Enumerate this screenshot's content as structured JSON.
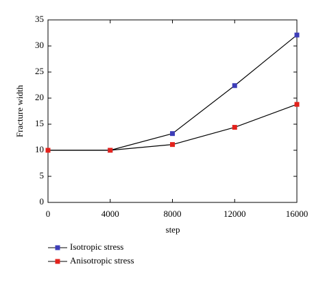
{
  "chart_data": {
    "type": "line",
    "x_label": "step",
    "y_label": "Fracture width",
    "x": [
      0,
      4000,
      8000,
      12000,
      16000
    ],
    "series": [
      {
        "name": "Isotropic stress",
        "color": "#3d3db8",
        "values": [
          10,
          10,
          13.2,
          22.4,
          32.1
        ]
      },
      {
        "name": "Anisotropic stress",
        "color": "#e3221c",
        "values": [
          10,
          10,
          11.1,
          14.4,
          18.8
        ]
      }
    ],
    "line_color": "#000000",
    "xlim": [
      0,
      16000
    ],
    "xticks": [
      0,
      4000,
      8000,
      12000,
      16000
    ],
    "ylim": [
      0,
      35
    ],
    "yticks": [
      0,
      5,
      10,
      15,
      20,
      25,
      30,
      35
    ]
  }
}
